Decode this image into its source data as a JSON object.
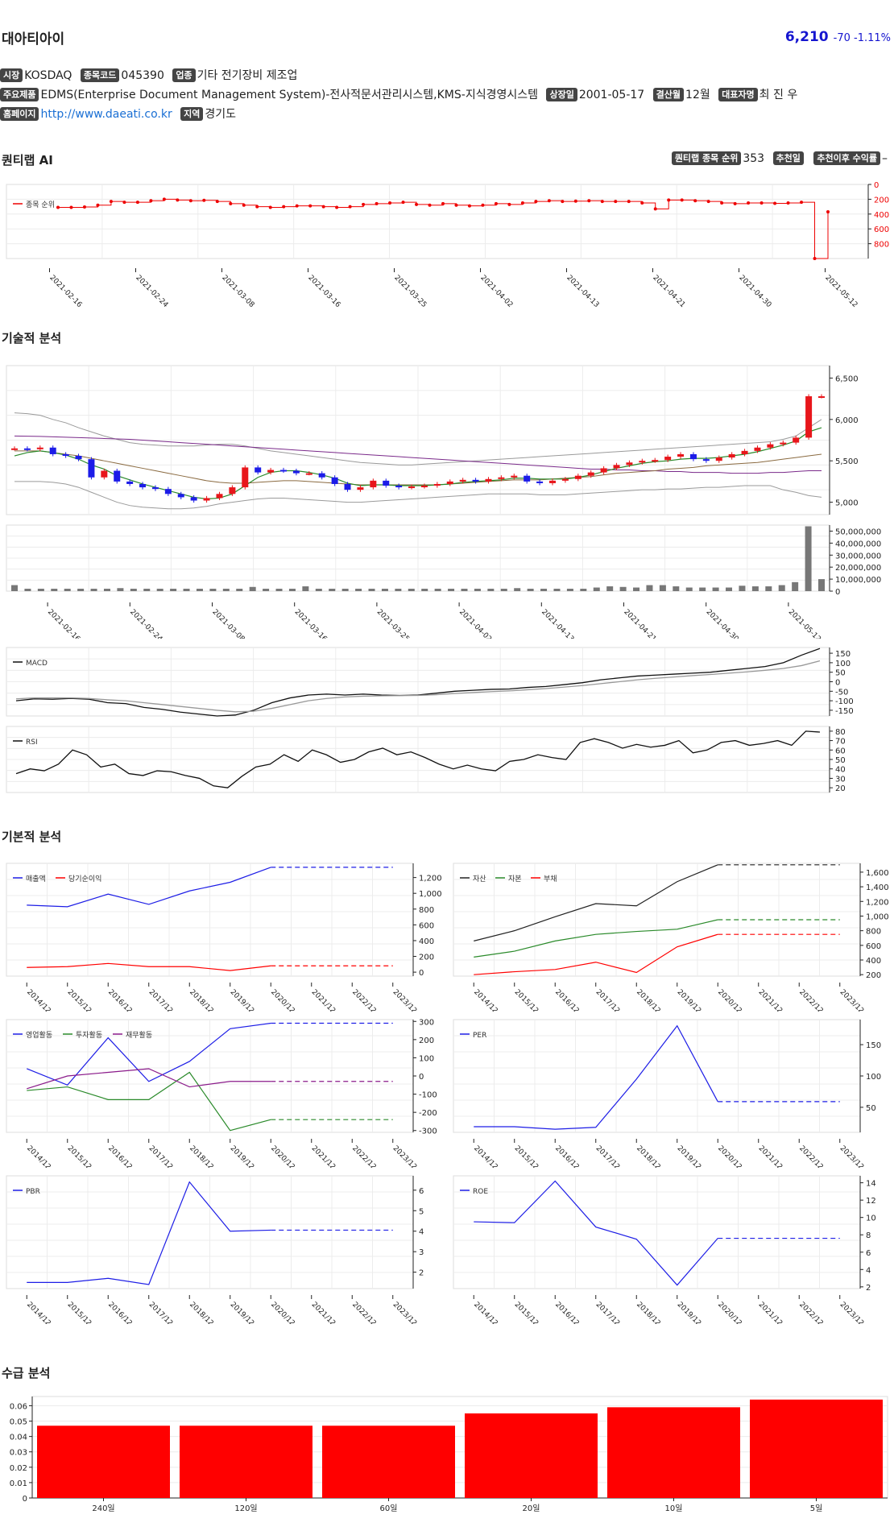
{
  "header": {
    "name": "대아티아이",
    "price": "6,210",
    "change": "-70",
    "change_pct": "-1.11%"
  },
  "info": {
    "market_label": "시장",
    "market": "KOSDAQ",
    "code_label": "종목코드",
    "code": "045390",
    "industry_label": "업종",
    "industry": "기타 전기장비 제조업",
    "products_label": "주요제품",
    "products": "EDMS(Enterprise Document Management System)-전사적문서관리시스템,KMS-지식경영시스템",
    "listing_label": "상장일",
    "listing": "2001-05-17",
    "fiscal_label": "결산월",
    "fiscal": "12월",
    "ceo_label": "대표자명",
    "ceo": "최 진 우",
    "homepage_label": "홈페이지",
    "homepage": "http://www.daeati.co.kr",
    "region_label": "지역",
    "region": "경기도"
  },
  "sections": {
    "ai": "퀀티랩 AI",
    "technical": "기술적 분석",
    "fundamental": "기본적 분석",
    "supply": "수급 분석"
  },
  "ai_info": {
    "rank_label": "퀀티랩 종목 순위",
    "rank": "353",
    "rec_date_label": "추천일",
    "return_label": "추천이후 수익률",
    "return": "–"
  },
  "dates": [
    "2021-02-16",
    "2021-02-24",
    "2021-03-08",
    "2021-03-16",
    "2021-03-25",
    "2021-04-02",
    "2021-04-13",
    "2021-04-21",
    "2021-04-30",
    "2021-05-12"
  ],
  "years": [
    "2014/12",
    "2015/12",
    "2016/12",
    "2017/12",
    "2018/12",
    "2019/12",
    "2020/12",
    "2021/12",
    "2022/12",
    "2023/12"
  ],
  "chart_data": [
    {
      "type": "line",
      "legend": [
        "종목 순위"
      ],
      "y_ticks": [
        "0",
        "200",
        "400",
        "600",
        "800"
      ],
      "ylim": [
        0,
        1000
      ],
      "invert": true,
      "values": [
        310,
        310,
        305,
        280,
        230,
        240,
        240,
        220,
        200,
        210,
        220,
        215,
        230,
        260,
        280,
        300,
        310,
        300,
        290,
        290,
        300,
        310,
        300,
        270,
        260,
        250,
        240,
        270,
        280,
        260,
        280,
        290,
        280,
        260,
        270,
        250,
        230,
        220,
        230,
        225,
        220,
        230,
        230,
        230,
        250,
        330,
        210,
        210,
        220,
        230,
        250,
        260,
        250,
        250,
        255,
        250,
        240,
        1000,
        370
      ]
    },
    {
      "type": "candlestick",
      "y_ticks": [
        "6,500",
        "6,000",
        "5,500",
        "5,000"
      ],
      "ylim": [
        4850,
        6650
      ],
      "close": [
        5650,
        5640,
        5660,
        5580,
        5560,
        5520,
        5300,
        5380,
        5250,
        5220,
        5180,
        5160,
        5100,
        5060,
        5020,
        5050,
        5100,
        5180,
        5420,
        5360,
        5390,
        5380,
        5350,
        5350,
        5300,
        5220,
        5150,
        5180,
        5260,
        5200,
        5180,
        5190,
        5200,
        5220,
        5250,
        5270,
        5250,
        5280,
        5300,
        5320,
        5250,
        5230,
        5260,
        5280,
        5320,
        5360,
        5410,
        5450,
        5480,
        5500,
        5510,
        5550,
        5580,
        5520,
        5500,
        5540,
        5580,
        5620,
        5660,
        5700,
        5720,
        5780,
        6280,
        6280
      ],
      "ma5": [
        5560,
        5600,
        5620,
        5600,
        5570,
        5520,
        5450,
        5400,
        5320,
        5270,
        5220,
        5180,
        5140,
        5100,
        5060,
        5040,
        5050,
        5100,
        5200,
        5300,
        5360,
        5380,
        5380,
        5360,
        5330,
        5290,
        5230,
        5200,
        5210,
        5210,
        5200,
        5200,
        5200,
        5210,
        5220,
        5240,
        5250,
        5260,
        5270,
        5290,
        5290,
        5280,
        5280,
        5280,
        5300,
        5330,
        5370,
        5410,
        5440,
        5470,
        5490,
        5500,
        5520,
        5530,
        5530,
        5540,
        5560,
        5580,
        5610,
        5650,
        5690,
        5740,
        5850,
        5900
      ],
      "ma20": [
        5620,
        5620,
        5620,
        5600,
        5580,
        5560,
        5530,
        5500,
        5470,
        5440,
        5410,
        5380,
        5350,
        5320,
        5290,
        5260,
        5240,
        5230,
        5230,
        5240,
        5250,
        5260,
        5260,
        5250,
        5240,
        5230,
        5220,
        5210,
        5210,
        5210,
        5210,
        5210,
        5210,
        5210,
        5220,
        5230,
        5240,
        5250,
        5260,
        5270,
        5270,
        5270,
        5280,
        5290,
        5300,
        5310,
        5330,
        5350,
        5360,
        5370,
        5380,
        5400,
        5410,
        5420,
        5440,
        5450,
        5460,
        5470,
        5480,
        5500,
        5520,
        5540,
        5560,
        5580
      ],
      "ma60": [
        5800,
        5798,
        5795,
        5790,
        5785,
        5780,
        5775,
        5770,
        5765,
        5760,
        5750,
        5740,
        5730,
        5720,
        5710,
        5700,
        5690,
        5680,
        5670,
        5660,
        5650,
        5640,
        5630,
        5620,
        5610,
        5600,
        5590,
        5580,
        5570,
        5560,
        5550,
        5540,
        5530,
        5520,
        5510,
        5500,
        5490,
        5480,
        5470,
        5460,
        5450,
        5440,
        5430,
        5420,
        5410,
        5400,
        5400,
        5390,
        5390,
        5380,
        5380,
        5370,
        5370,
        5360,
        5360,
        5360,
        5350,
        5350,
        5350,
        5360,
        5360,
        5370,
        5380,
        5380
      ],
      "upper": [
        6080,
        6070,
        6050,
        6000,
        5960,
        5900,
        5850,
        5800,
        5760,
        5720,
        5700,
        5690,
        5680,
        5680,
        5680,
        5690,
        5700,
        5700,
        5680,
        5650,
        5620,
        5600,
        5580,
        5560,
        5540,
        5520,
        5500,
        5480,
        5470,
        5460,
        5450,
        5450,
        5460,
        5470,
        5480,
        5490,
        5500,
        5510,
        5520,
        5530,
        5540,
        5550,
        5560,
        5570,
        5580,
        5590,
        5600,
        5610,
        5620,
        5630,
        5640,
        5650,
        5660,
        5670,
        5680,
        5690,
        5700,
        5710,
        5720,
        5730,
        5760,
        5800,
        5900,
        6000
      ],
      "lower": [
        5250,
        5250,
        5250,
        5240,
        5220,
        5180,
        5120,
        5060,
        5000,
        4960,
        4940,
        4930,
        4920,
        4920,
        4930,
        4950,
        4980,
        5000,
        5020,
        5040,
        5050,
        5050,
        5040,
        5030,
        5020,
        5010,
        5000,
        5000,
        5010,
        5020,
        5030,
        5040,
        5050,
        5060,
        5070,
        5080,
        5090,
        5100,
        5100,
        5100,
        5100,
        5090,
        5090,
        5090,
        5100,
        5110,
        5120,
        5130,
        5140,
        5150,
        5150,
        5160,
        5160,
        5170,
        5180,
        5180,
        5190,
        5200,
        5200,
        5200,
        5150,
        5120,
        5080,
        5060
      ]
    },
    {
      "type": "bar",
      "label": "volume",
      "y_ticks": [
        "50,000,000",
        "40,000,000",
        "30,000,000",
        "20,000,000",
        "10,000,000",
        "0"
      ],
      "ylim": [
        0,
        55000000
      ],
      "values": [
        5000000,
        2000000,
        2000000,
        2000000,
        2000000,
        2000000,
        2000000,
        2000000,
        2500000,
        2000000,
        2000000,
        2000000,
        2000000,
        2000000,
        2000000,
        2000000,
        2000000,
        2000000,
        3500000,
        2000000,
        2000000,
        2000000,
        4000000,
        2000000,
        2000000,
        2000000,
        2000000,
        2000000,
        2000000,
        2000000,
        2000000,
        2000000,
        2000000,
        2000000,
        2000000,
        2000000,
        2000000,
        2000000,
        2500000,
        2000000,
        2000000,
        2000000,
        2000000,
        2000000,
        3000000,
        4000000,
        3500000,
        3000000,
        5000000,
        5000000,
        4000000,
        3000000,
        3000000,
        3000000,
        3000000,
        4500000,
        4000000,
        4000000,
        5000000,
        7500000,
        54000000,
        10000000
      ]
    },
    {
      "type": "line",
      "legend": [
        "MACD"
      ],
      "y_ticks": [
        "150",
        "100",
        "50",
        "0",
        "-50",
        "-100",
        "-150"
      ],
      "ylim": [
        -180,
        180
      ],
      "series": [
        {
          "values": [
            -100,
            -90,
            -92,
            -88,
            -92,
            -110,
            -115,
            -135,
            -145,
            -160,
            -170,
            -180,
            -175,
            -150,
            -110,
            -85,
            -70,
            -65,
            -70,
            -65,
            -70,
            -72,
            -70,
            -60,
            -50,
            -45,
            -40,
            -38,
            -30,
            -25,
            -15,
            -5,
            10,
            20,
            30,
            35,
            40,
            45,
            50,
            60,
            70,
            80,
            100,
            140,
            175
          ]
        },
        {
          "values": [
            -90,
            -85,
            -85,
            -85,
            -88,
            -95,
            -100,
            -110,
            -120,
            -130,
            -140,
            -150,
            -158,
            -155,
            -140,
            -120,
            -100,
            -88,
            -80,
            -76,
            -74,
            -73,
            -72,
            -68,
            -62,
            -57,
            -52,
            -48,
            -42,
            -36,
            -28,
            -20,
            -10,
            0,
            10,
            18,
            25,
            32,
            38,
            45,
            52,
            60,
            70,
            85,
            110
          ]
        }
      ]
    },
    {
      "type": "line",
      "legend": [
        "RSI"
      ],
      "y_ticks": [
        "80",
        "70",
        "60",
        "50",
        "40",
        "30",
        "20"
      ],
      "ylim": [
        15,
        85
      ],
      "values": [
        35,
        40,
        38,
        45,
        60,
        55,
        42,
        45,
        35,
        33,
        38,
        37,
        33,
        30,
        22,
        20,
        32,
        42,
        45,
        55,
        48,
        60,
        55,
        47,
        50,
        58,
        62,
        55,
        58,
        52,
        45,
        40,
        44,
        40,
        38,
        48,
        50,
        55,
        52,
        50,
        68,
        72,
        68,
        62,
        66,
        63,
        65,
        70,
        57,
        60,
        68,
        70,
        65,
        67,
        70,
        65,
        80,
        79
      ]
    },
    {
      "type": "line",
      "legend": [
        "매출액",
        "당기순이익"
      ],
      "y_ticks": [
        "1,200",
        "1,000",
        "800",
        "600",
        "400",
        "200",
        "0"
      ],
      "ylim": [
        -50,
        1380
      ],
      "dashed_from": 6,
      "series": [
        {
          "name": "매출액",
          "values": [
            850,
            830,
            990,
            860,
            1030,
            1140,
            1330,
            1330,
            1330,
            1330
          ]
        },
        {
          "name": "당기순이익",
          "values": [
            60,
            70,
            110,
            70,
            70,
            20,
            80,
            80,
            80,
            80
          ]
        }
      ]
    },
    {
      "type": "line",
      "legend": [
        "자산",
        "자본",
        "부채"
      ],
      "y_ticks": [
        "1,600",
        "1,400",
        "1,200",
        "1,000",
        "800",
        "600",
        "400",
        "200"
      ],
      "ylim": [
        180,
        1720
      ],
      "dashed_from": 6,
      "series": [
        {
          "name": "자산",
          "values": [
            660,
            800,
            990,
            1170,
            1140,
            1470,
            1700,
            1700,
            1700,
            1700
          ]
        },
        {
          "name": "자본",
          "values": [
            440,
            520,
            660,
            750,
            790,
            820,
            950,
            950,
            950,
            950
          ]
        },
        {
          "name": "부채",
          "values": [
            200,
            240,
            270,
            370,
            230,
            580,
            750,
            750,
            750,
            750
          ]
        }
      ]
    },
    {
      "type": "line",
      "legend": [
        "영업활동",
        "투자활동",
        "재무활동"
      ],
      "y_ticks": [
        "300",
        "200",
        "100",
        "0",
        "-100",
        "-200",
        "-300"
      ],
      "ylim": [
        -310,
        310
      ],
      "dashed_from": 6,
      "series": [
        {
          "name": "영업활동",
          "values": [
            40,
            -50,
            210,
            -30,
            80,
            260,
            290,
            290,
            290,
            290
          ]
        },
        {
          "name": "투자활동",
          "values": [
            -80,
            -60,
            -130,
            -130,
            20,
            -300,
            -240,
            -240,
            -240,
            -240
          ]
        },
        {
          "name": "재무활동",
          "values": [
            -70,
            0,
            20,
            40,
            -60,
            -30,
            -30,
            -30,
            -30,
            -30
          ]
        }
      ]
    },
    {
      "type": "line",
      "legend": [
        "PER"
      ],
      "y_ticks": [
        "150",
        "100",
        "50"
      ],
      "ylim": [
        10,
        190
      ],
      "dashed_from": 6,
      "series": [
        {
          "name": "PER",
          "values": [
            19,
            19,
            15,
            18,
            95,
            180,
            59,
            59,
            59,
            59
          ]
        }
      ]
    },
    {
      "type": "line",
      "legend": [
        "PBR"
      ],
      "y_ticks": [
        "6",
        "5",
        "4",
        "3",
        "2"
      ],
      "ylim": [
        1.2,
        6.7
      ],
      "dashed_from": 6,
      "series": [
        {
          "name": "PBR",
          "values": [
            1.5,
            1.5,
            1.7,
            1.4,
            6.4,
            4.0,
            4.05,
            4.05,
            4.05,
            4.05
          ]
        }
      ]
    },
    {
      "type": "line",
      "legend": [
        "ROE"
      ],
      "y_ticks": [
        "14",
        "12",
        "10",
        "8",
        "6",
        "4",
        "2"
      ],
      "ylim": [
        1.8,
        14.8
      ],
      "dashed_from": 6,
      "series": [
        {
          "name": "ROE",
          "values": [
            9.5,
            9.4,
            14.2,
            8.9,
            7.5,
            2.2,
            7.6,
            7.6,
            7.6,
            7.6
          ]
        }
      ]
    },
    {
      "type": "bar",
      "categories": [
        "240일",
        "120일",
        "60일",
        "20일",
        "10일",
        "5일"
      ],
      "values": [
        0.047,
        0.047,
        0.047,
        0.055,
        0.059,
        0.064
      ],
      "y_ticks": [
        "0.06",
        "0.05",
        "0.04",
        "0.03",
        "0.02",
        "0.01",
        "0"
      ],
      "ylim": [
        0,
        0.066
      ]
    }
  ],
  "colors": {
    "up": "#e8161b",
    "down": "#1c1ce8",
    "ma5": "#2a8a2a",
    "ma20": "#8a6a40",
    "ma60": "#7a2a8a",
    "band": "#9a9a9a",
    "red": "#ff0000",
    "blue": "#1d1de6",
    "green": "#2a8a2a",
    "purple": "#8a1a8a",
    "black": "#222"
  }
}
